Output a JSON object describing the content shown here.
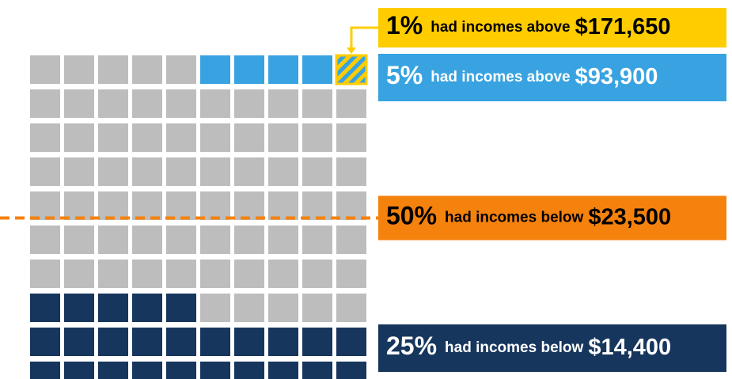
{
  "chart_data": {
    "type": "waffle",
    "values": [
      1,
      5,
      50,
      25
    ],
    "value_labels": [
      "1%",
      "5%",
      "50%",
      "25%"
    ],
    "texts": [
      "had incomes above",
      "had incomes above",
      "had incomes below",
      "had incomes below"
    ],
    "amounts": [
      "$171,650",
      "$93,900",
      "$23,500",
      "$14,400"
    ],
    "colors": [
      "#ffcc00",
      "#38a3e0",
      "#f5820d",
      "#17365d"
    ],
    "text_colors": [
      "#000000",
      "#ffffff",
      "#000000",
      "#ffffff"
    ],
    "base_color": "#bdbdbd"
  }
}
